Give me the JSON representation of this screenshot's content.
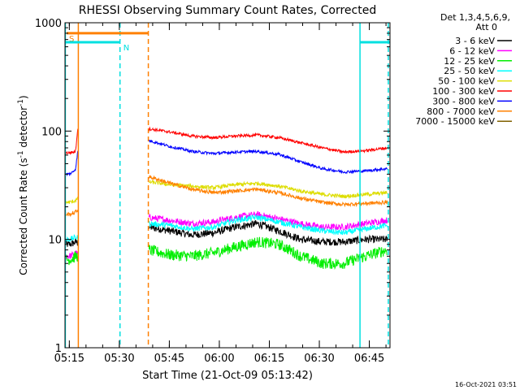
{
  "chart_data": {
    "type": "line",
    "title": "RHESSI Observing Summary Count Rates, Corrected",
    "xlabel": "Start Time (21-Oct-09 05:13:42)",
    "ylabel_main": "Corrected Count Rate (s",
    "ylabel_sup1": "-1",
    "ylabel_mid": " detector",
    "ylabel_sup2": "-1",
    "ylabel_end": ")",
    "yscale": "log",
    "ylim": [
      1,
      1000
    ],
    "xlim_minutes": [
      0,
      97.5
    ],
    "x_ticks": [
      {
        "label": "05:15",
        "min": 1.3
      },
      {
        "label": "05:30",
        "min": 16.3
      },
      {
        "label": "05:45",
        "min": 31.3
      },
      {
        "label": "06:00",
        "min": 46.3
      },
      {
        "label": "06:15",
        "min": 61.3
      },
      {
        "label": "06:30",
        "min": 76.3
      },
      {
        "label": "06:45",
        "min": 91.3
      }
    ],
    "y_ticks": [
      {
        "label": "1",
        "value": 1
      },
      {
        "label": "10",
        "value": 10
      },
      {
        "label": "100",
        "value": 100
      },
      {
        "label": "1000",
        "value": 1000
      }
    ],
    "legend": {
      "header1": "Det 1,3,4,5,6,9,",
      "header2": "Att 0",
      "placement": "right"
    },
    "gap_minutes": [
      4,
      25
    ],
    "series": [
      {
        "name": "3 - 6 keV",
        "color": "#000000",
        "pre": [
          9,
          9.5,
          9.2
        ],
        "post": [
          13,
          12,
          11,
          11.5,
          13,
          14,
          12,
          10,
          9.5,
          9.5,
          10,
          10
        ],
        "noise": 0.08
      },
      {
        "name": "6 - 12 keV",
        "color": "#ff00ff",
        "pre": [
          7,
          7.5,
          7.2
        ],
        "post": [
          16,
          15,
          14,
          14.5,
          16,
          17,
          15.5,
          14,
          13,
          13,
          14,
          15
        ],
        "noise": 0.07
      },
      {
        "name": "12 - 25 keV",
        "color": "#00ee00",
        "pre": [
          6.5,
          7,
          7
        ],
        "post": [
          8,
          7.2,
          7,
          7.5,
          8.5,
          9.5,
          9,
          7,
          6,
          6,
          7,
          8
        ],
        "noise": 0.12
      },
      {
        "name": "25 - 50 keV",
        "color": "#00ffff",
        "pre": [
          10,
          10.5,
          10.3
        ],
        "post": [
          14,
          13.5,
          12.5,
          13,
          15,
          16,
          14.5,
          13,
          12,
          11.5,
          12.5,
          13.5
        ],
        "noise": 0.06
      },
      {
        "name": "50 - 100 keV",
        "color": "#dddd00",
        "pre": [
          22,
          23,
          24
        ],
        "post": [
          34,
          32,
          31,
          30,
          32,
          33,
          31,
          28,
          26,
          25,
          26,
          27
        ],
        "noise": 0.04
      },
      {
        "name": "100 - 300 keV",
        "color": "#ff0000",
        "pre": [
          63,
          65,
          120
        ],
        "post": [
          105,
          98,
          90,
          87,
          90,
          92,
          87,
          78,
          70,
          64,
          66,
          70
        ],
        "noise": 0.03
      },
      {
        "name": "300 - 800 keV",
        "color": "#0000ff",
        "pre": [
          40,
          45,
          72
        ],
        "post": [
          82,
          72,
          65,
          62,
          64,
          65,
          61,
          52,
          45,
          42,
          43,
          45
        ],
        "noise": 0.03
      },
      {
        "name": "800 - 7000 keV",
        "color": "#ff8000",
        "pre": [
          17,
          18,
          19
        ],
        "post": [
          38,
          33,
          29,
          27,
          28,
          29,
          27,
          24,
          22,
          21,
          21.5,
          22
        ],
        "noise": 0.04
      },
      {
        "name": "7000 - 15000 keV",
        "color": "#806000",
        "pre": [],
        "post": [],
        "noise": 0
      }
    ],
    "flags": [
      {
        "label": "S",
        "color": "#ff8000",
        "level": 800,
        "from": 0.5,
        "to": 25
      },
      {
        "label": "N",
        "color": "#00e0e0",
        "level": 660,
        "from": 0,
        "to": 16.5
      },
      {
        "label": "",
        "color": "#00e0e0",
        "level": 660,
        "from": 88.5,
        "to": 97.5
      }
    ],
    "vlines": [
      {
        "min": 0.1,
        "color": "#00e0e0",
        "style": "solid"
      },
      {
        "min": 4,
        "color": "#ff8000",
        "style": "solid"
      },
      {
        "min": 16.5,
        "color": "#00e0e0",
        "style": "dashed"
      },
      {
        "min": 25,
        "color": "#ff8000",
        "style": "dashed"
      },
      {
        "min": 88.5,
        "color": "#00e0e0",
        "style": "solid"
      },
      {
        "min": 97,
        "color": "#00e0e0",
        "style": "dashed"
      }
    ],
    "footer": "16-Oct-2021 03:51"
  }
}
